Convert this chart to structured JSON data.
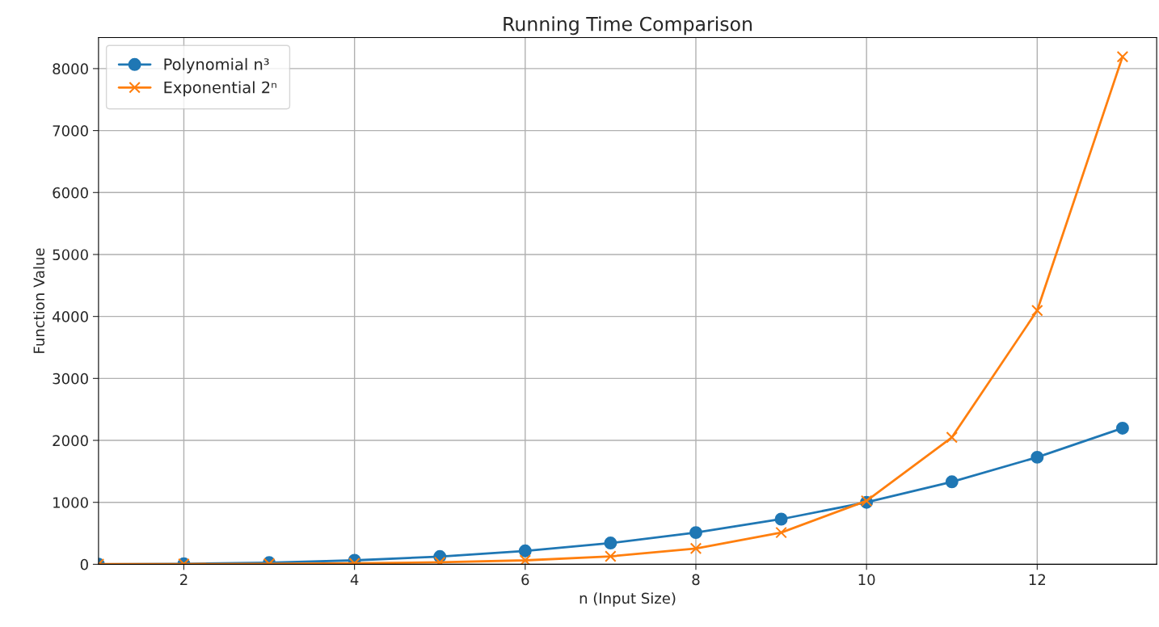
{
  "chart_data": {
    "type": "line",
    "title": "Running Time Comparison",
    "xlabel": "n (Input Size)",
    "ylabel": "Function Value",
    "x": [
      1,
      2,
      3,
      4,
      5,
      6,
      7,
      8,
      9,
      10,
      11,
      12,
      13
    ],
    "series": [
      {
        "name": "Polynomial n³",
        "color": "#1f77b4",
        "marker": "circle",
        "values": [
          1,
          8,
          27,
          64,
          125,
          216,
          343,
          512,
          729,
          1000,
          1331,
          1728,
          2197
        ]
      },
      {
        "name": "Exponential 2ⁿ",
        "color": "#ff7f0e",
        "marker": "cross",
        "values": [
          2,
          4,
          8,
          16,
          32,
          64,
          128,
          256,
          512,
          1024,
          2048,
          4096,
          8192
        ]
      }
    ],
    "xlim": [
      1,
      13.4
    ],
    "ylim": [
      0,
      8500
    ],
    "xticks": [
      2,
      4,
      6,
      8,
      10,
      12
    ],
    "yticks": [
      0,
      1000,
      2000,
      3000,
      4000,
      5000,
      6000,
      7000,
      8000
    ],
    "grid": true,
    "legend": "top left"
  }
}
